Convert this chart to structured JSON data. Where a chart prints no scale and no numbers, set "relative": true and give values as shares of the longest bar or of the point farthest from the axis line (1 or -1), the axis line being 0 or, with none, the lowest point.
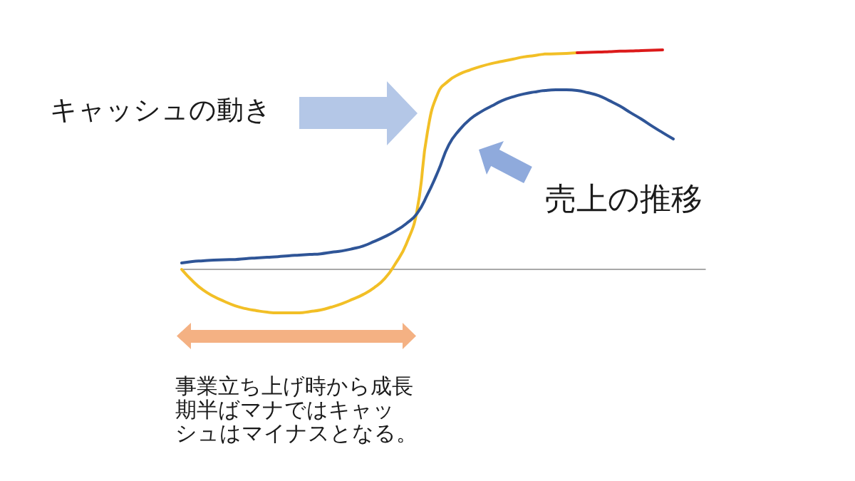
{
  "chart_data": {
    "type": "line",
    "relative": true,
    "categories": [
      null,
      null,
      null,
      null,
      null,
      null,
      null,
      null,
      null,
      null,
      null,
      null,
      null,
      null,
      null,
      null,
      null,
      null,
      null,
      null,
      null,
      null,
      null,
      null,
      null,
      null,
      null,
      null,
      null,
      null,
      null,
      null,
      null,
      null,
      null,
      null,
      null,
      null,
      null,
      null,
      null,
      null,
      null,
      null,
      null,
      null,
      null,
      null,
      null,
      null
    ],
    "series": [
      {
        "color": "#f2bf26",
        "values": [
          0,
          -0.052,
          -0.094,
          -0.123,
          -0.146,
          -0.166,
          -0.179,
          -0.188,
          -0.195,
          -0.198,
          -0.198,
          -0.198,
          -0.192,
          -0.185,
          -0.172,
          -0.156,
          -0.136,
          -0.114,
          -0.084,
          -0.042,
          0.026,
          0.114,
          0.263,
          0.627,
          0.805,
          0.86,
          0.89,
          0.909,
          0.925,
          0.938,
          0.948,
          0.958,
          0.968,
          0.974,
          0.981,
          0.982,
          0.984,
          0.987,
          null,
          null,
          null,
          null,
          null,
          null,
          null,
          null,
          null,
          null,
          null,
          null
        ]
      },
      {
        "color": "#dc1a1a",
        "values": [
          null,
          null,
          null,
          null,
          null,
          null,
          null,
          null,
          null,
          null,
          null,
          null,
          null,
          null,
          null,
          null,
          null,
          null,
          null,
          null,
          null,
          null,
          null,
          null,
          null,
          null,
          null,
          null,
          null,
          null,
          null,
          null,
          null,
          null,
          null,
          null,
          null,
          0.987,
          0.989,
          0.99,
          0.992,
          0.994,
          0.995,
          0.997,
          0.998,
          1,
          null,
          null,
          null,
          null
        ]
      },
      {
        "color": "#2f5597",
        "values": [
          0.029,
          0.036,
          0.039,
          0.042,
          0.044,
          0.045,
          0.049,
          0.052,
          0.055,
          0.058,
          0.062,
          0.065,
          0.068,
          0.071,
          0.078,
          0.084,
          0.094,
          0.107,
          0.127,
          0.149,
          0.175,
          0.208,
          0.253,
          0.341,
          0.448,
          0.568,
          0.636,
          0.685,
          0.718,
          0.744,
          0.769,
          0.786,
          0.799,
          0.808,
          0.815,
          0.818,
          0.818,
          0.815,
          0.805,
          0.792,
          0.769,
          0.744,
          0.714,
          0.685,
          0.653,
          0.623,
          0.594,
          null,
          null,
          null
        ]
      }
    ],
    "annotations": [
      "キャッシュの動き",
      "売上の推移",
      "事業立ち上げ時から成長期半ばマナではキャッシュはマイナスとなる。"
    ]
  }
}
